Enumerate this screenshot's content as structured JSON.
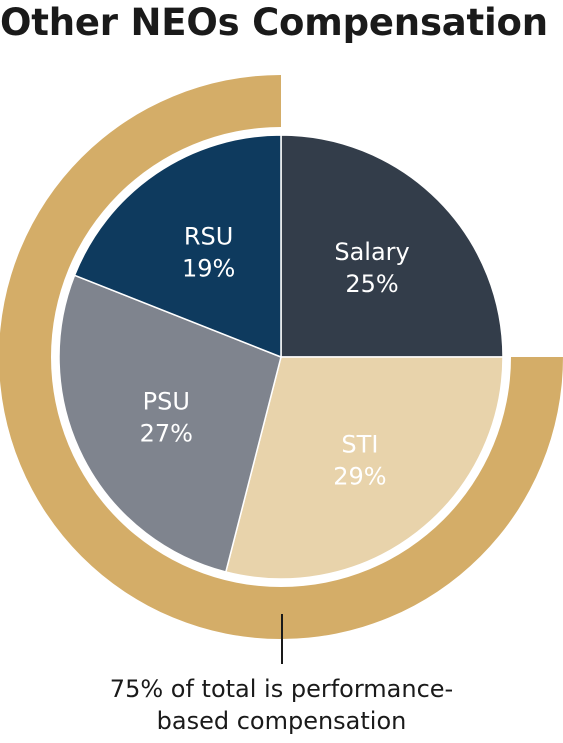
{
  "chart_data": {
    "type": "pie",
    "title": "Other NEOs Compensation",
    "slices": [
      {
        "label": "Salary",
        "value": 25,
        "value_label": "25%",
        "color": "#333d4a"
      },
      {
        "label": "STI",
        "value": 29,
        "value_label": "29%",
        "color": "#e8d3ab"
      },
      {
        "label": "PSU",
        "value": 27,
        "value_label": "27%",
        "color": "#7f848e"
      },
      {
        "label": "RSU",
        "value": 19,
        "value_label": "19%",
        "color": "#0e3a5e"
      }
    ],
    "performance_arc": {
      "value": 75,
      "color": "#d4ad68",
      "annotation_lines": [
        "75% of total is performance-",
        "based compensation"
      ]
    }
  }
}
